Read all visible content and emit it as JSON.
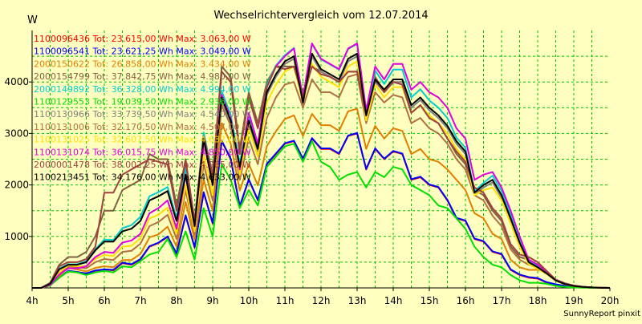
{
  "chart_data": {
    "type": "line",
    "title": "Wechselrichtervergleich vom 12.07.2014",
    "ylabel": "W",
    "footer": "SunnyReport pinxit",
    "xlim": [
      4,
      20
    ],
    "ylim": [
      0,
      5000
    ],
    "x_ticks": [
      4,
      5,
      6,
      7,
      8,
      9,
      10,
      11,
      12,
      13,
      14,
      15,
      16,
      17,
      18,
      19,
      20
    ],
    "x_tick_labels": [
      "4h",
      "5h",
      "6h",
      "7h",
      "8h",
      "9h",
      "10h",
      "11h",
      "12h",
      "13h",
      "14h",
      "15h",
      "16h",
      "17h",
      "18h",
      "19h",
      "20h"
    ],
    "y_ticks": [
      1000,
      2000,
      3000,
      4000
    ],
    "grid": true,
    "legend_position": "top-left",
    "x": [
      4.0,
      4.25,
      4.5,
      4.75,
      5.0,
      5.25,
      5.5,
      5.75,
      6.0,
      6.25,
      6.5,
      6.75,
      7.0,
      7.25,
      7.5,
      7.75,
      8.0,
      8.25,
      8.5,
      8.75,
      9.0,
      9.25,
      9.5,
      9.75,
      10.0,
      10.25,
      10.5,
      10.75,
      11.0,
      11.25,
      11.5,
      11.75,
      12.0,
      12.25,
      12.5,
      12.75,
      13.0,
      13.25,
      13.5,
      13.75,
      14.0,
      14.25,
      14.5,
      14.75,
      15.0,
      15.25,
      15.5,
      15.75,
      16.0,
      16.25,
      16.5,
      16.75,
      17.0,
      17.25,
      17.5,
      17.75,
      18.0,
      18.25,
      18.5,
      18.75,
      19.0,
      19.25,
      19.5,
      19.75,
      20.0
    ],
    "series": [
      {
        "name": "1100096436 Tot: 23.615,00 Wh Max: 3.063,00 W",
        "color": "#ff0000",
        "values": [
          0,
          0,
          50,
          200,
          330,
          310,
          270,
          330,
          360,
          340,
          480,
          450,
          550,
          800,
          870,
          990,
          660,
          1400,
          780,
          1850,
          1250,
          2850,
          2500,
          1580,
          2100,
          1700,
          2400,
          2600,
          2800,
          2850,
          2500,
          2900,
          2700,
          2700,
          2600,
          2950,
          3000,
          2300,
          2700,
          2500,
          2650,
          2600,
          2100,
          2150,
          2000,
          1950,
          1700,
          1350,
          1300,
          950,
          900,
          700,
          650,
          350,
          250,
          200,
          180,
          100,
          60,
          30,
          20,
          10,
          5,
          0,
          0
        ]
      },
      {
        "name": "1100096541 Tot: 23.621,25 Wh Max: 3.049,00 W",
        "color": "#0000ff",
        "values": [
          0,
          0,
          50,
          200,
          330,
          310,
          280,
          340,
          360,
          350,
          490,
          460,
          560,
          810,
          880,
          1000,
          670,
          1410,
          790,
          1860,
          1260,
          2860,
          2510,
          1590,
          2110,
          1710,
          2410,
          2610,
          2810,
          2860,
          2510,
          2910,
          2710,
          2710,
          2610,
          2960,
          3010,
          2310,
          2710,
          2510,
          2660,
          2610,
          2110,
          2160,
          2010,
          1960,
          1710,
          1360,
          1310,
          960,
          910,
          710,
          660,
          360,
          260,
          210,
          190,
          110,
          70,
          40,
          30,
          15,
          8,
          3,
          0
        ]
      },
      {
        "name": "2000150622 Tot: 26.858,00 Wh Max: 3.434,00 W",
        "color": "#e08000",
        "values": [
          0,
          0,
          50,
          240,
          390,
          360,
          320,
          390,
          420,
          400,
          540,
          540,
          660,
          980,
          1040,
          1190,
          800,
          1670,
          940,
          2100,
          1500,
          3200,
          2800,
          1890,
          2410,
          1990,
          2750,
          3040,
          3280,
          3350,
          2950,
          3380,
          3160,
          3160,
          3050,
          3430,
          3480,
          2700,
          3150,
          2900,
          3100,
          3050,
          2600,
          2700,
          2500,
          2450,
          2300,
          2100,
          1900,
          1450,
          1350,
          1050,
          950,
          550,
          400,
          350,
          350,
          300,
          150,
          80,
          40,
          20,
          10,
          3,
          0
        ]
      },
      {
        "name": "2000154799 Tot: 37.842,75 Wh Max: 4.980,00 W",
        "color": "#806040",
        "values": [
          0,
          0,
          100,
          450,
          600,
          600,
          700,
          1000,
          1500,
          1500,
          1900,
          2000,
          2100,
          2600,
          2500,
          2500,
          1600,
          2500,
          1300,
          3000,
          2200,
          4300,
          4100,
          2700,
          3800,
          3200,
          4000,
          4300,
          4300,
          4300,
          3800,
          4300,
          4200,
          4100,
          4000,
          4200,
          4200,
          3400,
          4100,
          3800,
          4000,
          3950,
          3400,
          3550,
          3300,
          3200,
          2900,
          2600,
          2400,
          1900,
          1800,
          1500,
          1300,
          800,
          600,
          550,
          450,
          300,
          150,
          80,
          40,
          20,
          10,
          3,
          0
        ]
      },
      {
        "name": "2000149892 Tot: 36.328,00 Wh Max: 4.994,00 W",
        "color": "#00d0d0",
        "values": [
          0,
          0,
          80,
          380,
          460,
          460,
          520,
          750,
          940,
          930,
          1160,
          1220,
          1380,
          1780,
          1860,
          1960,
          1360,
          2320,
          1260,
          3020,
          2100,
          3820,
          3360,
          2420,
          3340,
          2780,
          3940,
          4320,
          4520,
          4660,
          3680,
          4740,
          4440,
          4340,
          4240,
          4640,
          4740,
          3400,
          4220,
          3960,
          4240,
          4240,
          3700,
          3860,
          3640,
          3500,
          3300,
          2920,
          2720,
          1880,
          2040,
          2180,
          1880,
          1420,
          920,
          520,
          420,
          300,
          150,
          80,
          40,
          20,
          10,
          3,
          0
        ]
      },
      {
        "name": "1100129553 Tot: 19.039,50 Wh Max: 2.936,00 W",
        "color": "#00e000",
        "values": [
          0,
          0,
          50,
          200,
          320,
          300,
          250,
          300,
          330,
          300,
          420,
          400,
          520,
          650,
          700,
          950,
          600,
          1100,
          550,
          1550,
          1000,
          2400,
          2100,
          1550,
          1900,
          1600,
          2350,
          2550,
          2750,
          2800,
          2450,
          2850,
          2450,
          2350,
          2100,
          2200,
          2250,
          1950,
          2250,
          2150,
          2350,
          2300,
          2000,
          1900,
          1800,
          1600,
          1550,
          1350,
          1150,
          800,
          600,
          450,
          400,
          250,
          150,
          100,
          100,
          80,
          40,
          20,
          10,
          5,
          0,
          0,
          0
        ]
      },
      {
        "name": "1100130966 Tot: 33.739,50 Wh Max: 4.540,00 W",
        "color": "#808080",
        "values": [
          0,
          0,
          80,
          360,
          450,
          450,
          500,
          730,
          900,
          900,
          1100,
          1150,
          1300,
          1700,
          1780,
          1880,
          1300,
          2200,
          1200,
          2900,
          2000,
          3650,
          3200,
          2300,
          3200,
          2650,
          3750,
          4100,
          4350,
          4450,
          3550,
          4500,
          4200,
          4100,
          4000,
          4400,
          4500,
          3300,
          4000,
          3800,
          4000,
          4000,
          3500,
          3650,
          3450,
          3300,
          3100,
          2800,
          2600,
          1800,
          1950,
          2050,
          1750,
          1300,
          850,
          480,
          380,
          270,
          140,
          70,
          35,
          18,
          8,
          2,
          0
        ]
      },
      {
        "name": "1100131006 Tot: 32.170,50 Wh Max: 4.507,00 W",
        "color": "#b07040",
        "values": [
          0,
          0,
          60,
          280,
          420,
          400,
          380,
          500,
          560,
          540,
          700,
          720,
          860,
          1200,
          1280,
          1420,
          950,
          1900,
          1050,
          2400,
          1700,
          3550,
          3150,
          2100,
          2900,
          2400,
          3300,
          3700,
          3950,
          4000,
          3500,
          4050,
          3800,
          3800,
          3700,
          4100,
          4150,
          3200,
          3800,
          3600,
          3750,
          3700,
          3200,
          3300,
          3100,
          3000,
          2800,
          2500,
          2300,
          1800,
          1700,
          1400,
          1200,
          750,
          550,
          450,
          400,
          300,
          150,
          80,
          40,
          20,
          10,
          3,
          0
        ]
      },
      {
        "name": "1100131025 Tot: 32.607,50 Wh Max: 4.632,00 W",
        "color": "#ffe000",
        "values": [
          0,
          0,
          70,
          300,
          440,
          420,
          420,
          560,
          640,
          620,
          800,
          820,
          960,
          1350,
          1420,
          1560,
          1050,
          2000,
          1100,
          2600,
          1800,
          3700,
          3300,
          2200,
          3100,
          2550,
          3600,
          3950,
          4200,
          4300,
          3600,
          4350,
          4100,
          4000,
          3900,
          4300,
          4400,
          3250,
          3950,
          3700,
          3900,
          3900,
          3400,
          3550,
          3350,
          3200,
          3000,
          2700,
          2500,
          1800,
          1900,
          1950,
          1700,
          1250,
          800,
          460,
          370,
          270,
          140,
          70,
          35,
          18,
          8,
          2,
          0
        ]
      },
      {
        "name": "1100131074 Tot: 36.015,75 Wh Max: 4.850,00 W",
        "color": "#e000e0",
        "values": [
          0,
          0,
          60,
          260,
          380,
          380,
          420,
          600,
          700,
          680,
          880,
          920,
          1050,
          1450,
          1550,
          1700,
          1150,
          2200,
          1200,
          2850,
          2000,
          3750,
          3300,
          2300,
          3400,
          2800,
          3900,
          4300,
          4500,
          4650,
          3700,
          4750,
          4450,
          4350,
          4250,
          4650,
          4750,
          3450,
          4300,
          4050,
          4350,
          4350,
          3850,
          4000,
          3800,
          3700,
          3500,
          3100,
          2900,
          2100,
          2200,
          2250,
          1950,
          1500,
          1000,
          550,
          450,
          320,
          160,
          90,
          45,
          22,
          10,
          3,
          0
        ]
      },
      {
        "name": "2000001478 Tot: 38.002,25 Wh Max: 4.965,00 W",
        "color": "#a04040",
        "values": [
          0,
          0,
          90,
          420,
          500,
          500,
          560,
          800,
          1850,
          1850,
          2200,
          2300,
          2400,
          2500,
          2450,
          2400,
          1500,
          2450,
          1300,
          2950,
          2150,
          4200,
          4000,
          2600,
          3700,
          3100,
          3900,
          4300,
          4250,
          4300,
          3700,
          4300,
          4150,
          4100,
          4000,
          4200,
          4200,
          3350,
          4050,
          3800,
          4000,
          3950,
          3400,
          3550,
          3300,
          3200,
          2900,
          2650,
          2450,
          1950,
          1850,
          1550,
          1350,
          850,
          650,
          600,
          500,
          330,
          160,
          90,
          45,
          22,
          10,
          3,
          0
        ]
      },
      {
        "name": "1100213451 Tot: 34.176,00 Wh Max: 4.633,00 W",
        "color": "#000000",
        "values": [
          0,
          0,
          80,
          360,
          450,
          450,
          500,
          730,
          900,
          900,
          1100,
          1150,
          1300,
          1700,
          1780,
          1880,
          1300,
          2200,
          1200,
          2900,
          2000,
          3700,
          3250,
          2350,
          3250,
          2700,
          3800,
          4150,
          4400,
          4500,
          3600,
          4550,
          4250,
          4150,
          4050,
          4450,
          4550,
          3350,
          4050,
          3850,
          4050,
          4050,
          3550,
          3700,
          3500,
          3350,
          3150,
          2850,
          2650,
          1850,
          2000,
          2100,
          1800,
          1350,
          880,
          500,
          400,
          280,
          145,
          75,
          38,
          19,
          9,
          2,
          0
        ]
      }
    ]
  }
}
